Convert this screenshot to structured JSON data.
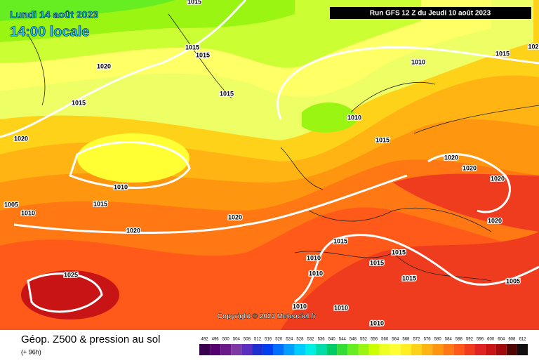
{
  "header": {
    "date": "Lundi 14 août 2023",
    "time": "14:00 locale",
    "run": "Run GFS 12 Z du Jeudi 10 août 2023"
  },
  "isobar_labels": [
    "1015",
    "1015",
    "1015",
    "1020",
    "1015",
    "1015",
    "1020",
    "1010",
    "1015",
    "102",
    "1010",
    "1015",
    "1020",
    "1020",
    "1020",
    "1010",
    "1015",
    "1005",
    "1010",
    "1020",
    "1020",
    "1020",
    "1015",
    "1010",
    "1015",
    "1010",
    "1015",
    "1015",
    "1025",
    "1005",
    "1010",
    "1010",
    "1010"
  ],
  "copyright": "Copyright © 2023 Meteociel.fr",
  "legend": {
    "title": "Géop. Z500 & pression au sol",
    "subtitle": "(+ 96h)",
    "labels": [
      "492",
      "496",
      "500",
      "504",
      "508",
      "512",
      "516",
      "520",
      "524",
      "528",
      "532",
      "536",
      "540",
      "544",
      "548",
      "552",
      "556",
      "560",
      "564",
      "568",
      "572",
      "576",
      "580",
      "584",
      "588",
      "592",
      "596",
      "600",
      "604",
      "608",
      "612"
    ],
    "colors": [
      "#3a0050",
      "#55006e",
      "#6c1a8a",
      "#7d3aa4",
      "#5a2fc0",
      "#2030d0",
      "#0040ee",
      "#0070ff",
      "#00a0ff",
      "#00ccff",
      "#00eee6",
      "#00ddaa",
      "#00cc66",
      "#33dd33",
      "#66ee22",
      "#99f511",
      "#ccff00",
      "#eeff22",
      "#ffff33",
      "#ffee22",
      "#ffd21a",
      "#ffb414",
      "#ff9610",
      "#ff7814",
      "#ff5a1a",
      "#f03c1e",
      "#e02222",
      "#c81414",
      "#a00a0a",
      "#500505",
      "#101010"
    ]
  }
}
